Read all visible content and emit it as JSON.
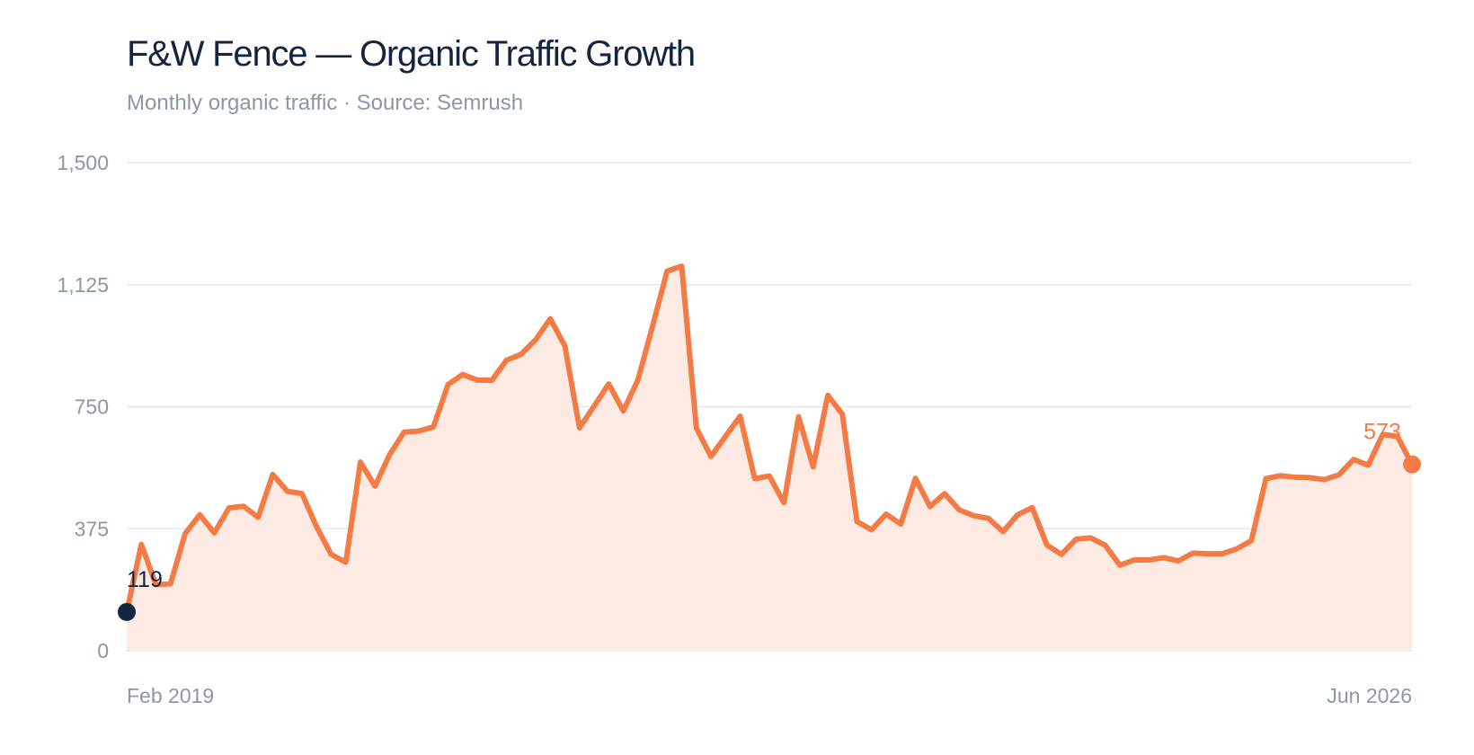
{
  "chart_data": {
    "type": "area",
    "title": "F&W Fence — Organic Traffic Growth",
    "subtitle": "Monthly organic traffic · Source: Semrush",
    "ylim": [
      0,
      1500
    ],
    "y_ticks": [
      "0",
      "375",
      "750",
      "1,125",
      "1,500"
    ],
    "x_labels": {
      "first": "Feb 2019",
      "last": "Jun 2026"
    },
    "start_value_label": "119",
    "end_value_label": "573",
    "grid": true,
    "colors": {
      "line": "#f47b45",
      "fill": "#fdebe3",
      "start_point": "#14263f",
      "end_point": "#f47b45",
      "grid": "#e3e7ec"
    },
    "values": [
      119,
      327,
      203,
      206,
      360,
      418,
      362,
      439,
      444,
      410,
      542,
      490,
      483,
      381,
      296,
      272,
      580,
      506,
      603,
      672,
      675,
      688,
      818,
      849,
      832,
      831,
      893,
      911,
      956,
      1020,
      937,
      685,
      752,
      820,
      737,
      832,
      997,
      1167,
      1182,
      685,
      597,
      659,
      721,
      529,
      537,
      455,
      719,
      565,
      785,
      727,
      397,
      372,
      420,
      389,
      530,
      443,
      483,
      433,
      415,
      407,
      366,
      418,
      440,
      325,
      296,
      343,
      347,
      324,
      263,
      279,
      279,
      286,
      276,
      300,
      298,
      298,
      313,
      338,
      529,
      538,
      533,
      532,
      526,
      541,
      588,
      570,
      665,
      659,
      573
    ]
  }
}
